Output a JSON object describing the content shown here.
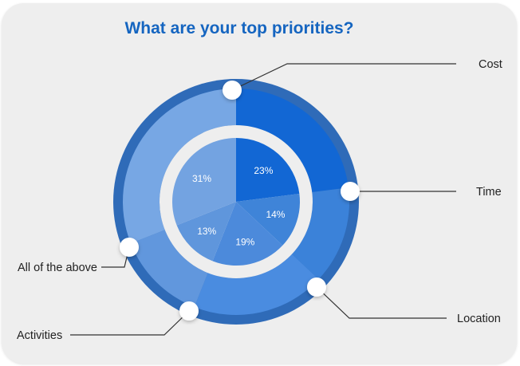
{
  "chart_data": {
    "type": "pie",
    "title": "What are your top priorities?",
    "inner_values": [
      23,
      14,
      19,
      13,
      31
    ],
    "inner_labels": [
      "23%",
      "14%",
      "19%",
      "13%",
      "31%"
    ],
    "outer_categories": [
      "Cost",
      "Time",
      "Location",
      "Activities",
      "All of the above"
    ],
    "outer_colors": [
      "#1267d4",
      "#3b82d9",
      "#4a8ce0",
      "#6197dd",
      "#77a7e4"
    ],
    "inner_colors": [
      "#1267d4",
      "#3f84d8",
      "#4c8adb",
      "#5f96dc",
      "#73a3e1"
    ]
  }
}
